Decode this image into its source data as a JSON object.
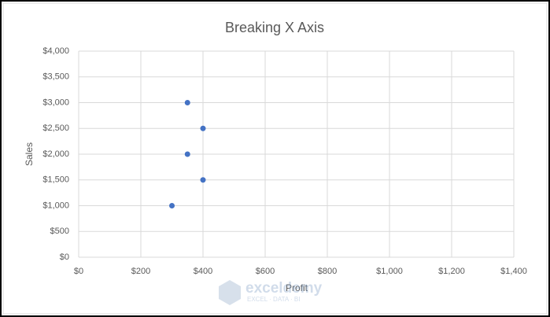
{
  "chart_data": {
    "type": "scatter",
    "title": "Breaking X Axis",
    "x_label": "Profit",
    "y_label": "Sales",
    "x": [
      300,
      350,
      400,
      350,
      400
    ],
    "values": [
      1000,
      3000,
      2500,
      2000,
      1500
    ],
    "color": "#4472c4",
    "xlim": [
      0,
      1400
    ],
    "xticks": [
      {
        "value": 0,
        "label": "$0"
      },
      {
        "value": 200,
        "label": "$200"
      },
      {
        "value": 400,
        "label": "$400"
      },
      {
        "value": 600,
        "label": "$600"
      },
      {
        "value": 800,
        "label": "$800"
      },
      {
        "value": 1000,
        "label": "$1,000"
      },
      {
        "value": 1200,
        "label": "$1,200"
      },
      {
        "value": 1400,
        "label": "$1,400"
      }
    ],
    "ylim": [
      0,
      4000
    ],
    "yticks": [
      {
        "value": 0,
        "label": "$0"
      },
      {
        "value": 500,
        "label": "$500"
      },
      {
        "value": 1000,
        "label": "$1,000"
      },
      {
        "value": 1500,
        "label": "$1,500"
      },
      {
        "value": 2000,
        "label": "$2,000"
      },
      {
        "value": 2500,
        "label": "$2,500"
      },
      {
        "value": 3000,
        "label": "$3,000"
      },
      {
        "value": 3500,
        "label": "$3,500"
      },
      {
        "value": 4000,
        "label": "$4,000"
      }
    ],
    "grid": true,
    "watermark": {
      "name": "exceldemy",
      "tagline": "EXCEL · DATA · BI"
    }
  }
}
